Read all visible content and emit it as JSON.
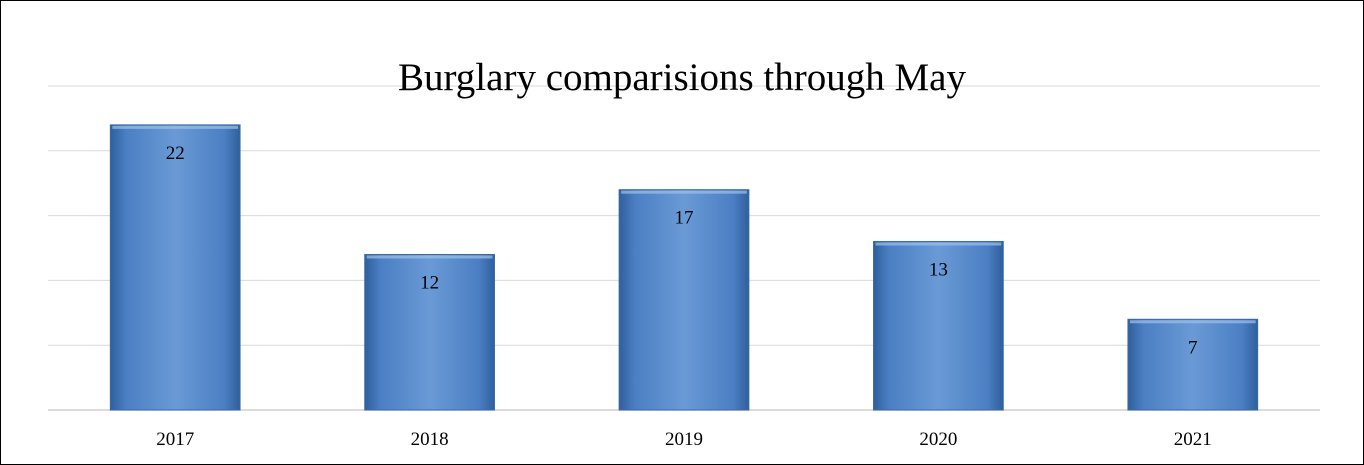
{
  "chart_data": {
    "type": "bar",
    "title": "Burglary comparisions through May",
    "categories": [
      "2017",
      "2018",
      "2019",
      "2020",
      "2021"
    ],
    "values": [
      22,
      12,
      17,
      13,
      7
    ],
    "ylim": [
      0,
      25
    ],
    "grid": true,
    "data_labels": true,
    "bar_color": "#4f81bd"
  }
}
